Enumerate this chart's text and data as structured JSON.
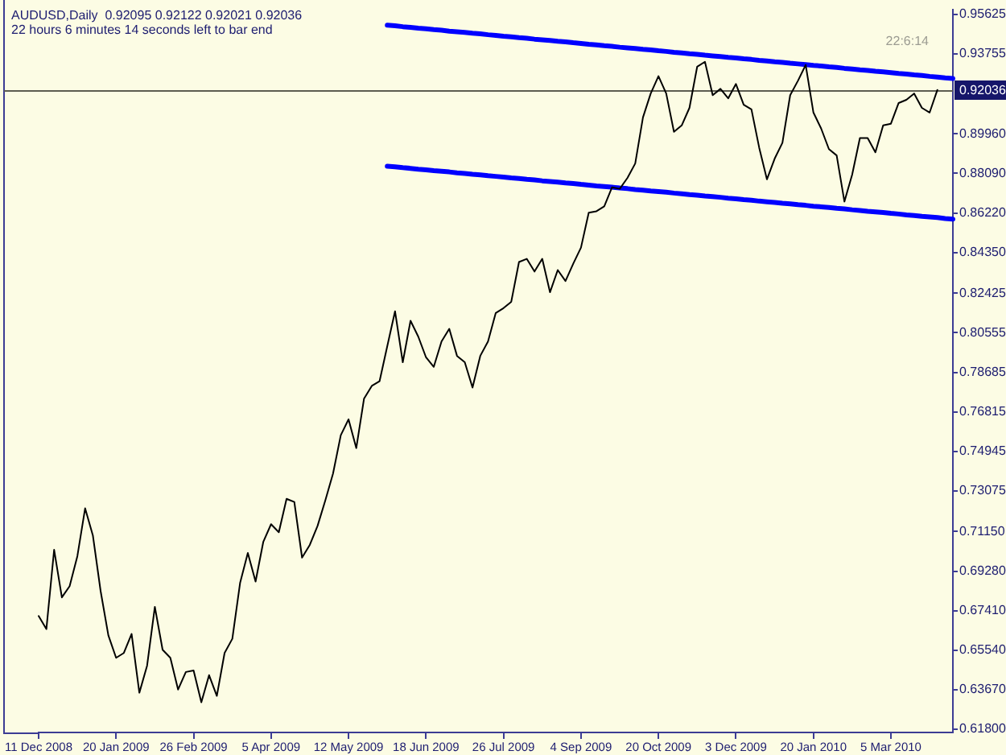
{
  "chart_data": {
    "type": "line",
    "title": "AUDUSD,Daily  0.92095 0.92122 0.92021 0.92036",
    "subtitle": "22 hours 6 minutes 14 seconds left to bar end",
    "annotations": [
      "22:6:14"
    ],
    "categories": [
      "11 Dec 2008",
      null,
      null,
      null,
      null,
      null,
      null,
      null,
      null,
      null,
      "20 Jan 2009",
      null,
      null,
      null,
      null,
      null,
      null,
      null,
      null,
      null,
      "26 Feb 2009",
      null,
      null,
      null,
      null,
      null,
      null,
      null,
      null,
      null,
      "5 Apr 2009",
      null,
      null,
      null,
      null,
      null,
      null,
      null,
      null,
      null,
      "12 May 2009",
      null,
      null,
      null,
      null,
      null,
      null,
      null,
      null,
      null,
      "18 Jun 2009",
      null,
      null,
      null,
      null,
      null,
      null,
      null,
      null,
      null,
      "26 Jul 2009",
      null,
      null,
      null,
      null,
      null,
      null,
      null,
      null,
      null,
      "4 Sep 2009",
      null,
      null,
      null,
      null,
      null,
      null,
      null,
      null,
      null,
      "20 Oct 2009",
      null,
      null,
      null,
      null,
      null,
      null,
      null,
      null,
      null,
      "3 Dec 2009",
      null,
      null,
      null,
      null,
      null,
      null,
      null,
      null,
      null,
      "20 Jan 2010",
      null,
      null,
      null,
      null,
      null,
      null,
      null,
      null,
      null,
      "5 Mar 2010",
      null,
      null,
      null,
      null,
      null,
      null,
      null,
      null
    ],
    "series": [
      {
        "color": "#000000",
        "values": [
          0.6716,
          0.6654,
          0.7029,
          0.6804,
          0.6857,
          0.6999,
          0.7225,
          0.7097,
          0.6834,
          0.6624,
          0.6518,
          0.6541,
          0.6631,
          0.6353,
          0.6481,
          0.6759,
          0.6556,
          0.6518,
          0.6368,
          0.6451,
          0.6458,
          0.6308,
          0.6436,
          0.6338,
          0.6541,
          0.6608,
          0.6872,
          0.7014,
          0.6879,
          0.7067,
          0.715,
          0.7112,
          0.727,
          0.7255,
          0.6992,
          0.7052,
          0.7142,
          0.7262,
          0.739,
          0.7571,
          0.7646,
          0.751,
          0.7744,
          0.7804,
          0.7826,
          0.7992,
          0.8157,
          0.7916,
          0.8112,
          0.8037,
          0.7939,
          0.7894,
          0.8014,
          0.8074,
          0.7946,
          0.7916,
          0.7796,
          0.7946,
          0.8014,
          0.8149,
          0.8172,
          0.8202,
          0.839,
          0.8405,
          0.8345,
          0.8405,
          0.8247,
          0.8352,
          0.83,
          0.8382,
          0.8458,
          0.8623,
          0.863,
          0.8653,
          0.8743,
          0.8736,
          0.8788,
          0.8856,
          0.9074,
          0.9187,
          0.9269,
          0.9187,
          0.9006,
          0.9036,
          0.9119,
          0.9314,
          0.9337,
          0.9179,
          0.9209,
          0.9164,
          0.9232,
          0.9134,
          0.9112,
          0.8931,
          0.8781,
          0.8879,
          0.8954,
          0.9179,
          0.9247,
          0.9322,
          0.9097,
          0.9021,
          0.8924,
          0.8894,
          0.8676,
          0.8803,
          0.8976,
          0.8976,
          0.8909,
          0.9036,
          0.9044,
          0.9142,
          0.9157,
          0.9187,
          0.9119,
          0.9097,
          0.9204,
          null,
          null
        ]
      },
      {
        "color": "#0000ff",
        "values": [
          null,
          null,
          null,
          null,
          null,
          null,
          null,
          null,
          null,
          null,
          null,
          null,
          null,
          null,
          null,
          null,
          null,
          null,
          null,
          null,
          null,
          null,
          null,
          null,
          null,
          null,
          null,
          null,
          null,
          null,
          null,
          null,
          null,
          null,
          null,
          null,
          null,
          null,
          null,
          null,
          null,
          null,
          null,
          null,
          null,
          0.951,
          0.9507,
          0.9503,
          0.95,
          0.9496,
          0.9493,
          0.9489,
          0.9486,
          0.9482,
          0.9479,
          0.9476,
          0.9472,
          0.9469,
          0.9465,
          0.9462,
          0.9458,
          0.9455,
          0.9451,
          0.9448,
          0.9444,
          0.9441,
          0.9438,
          0.9434,
          0.9431,
          0.9427,
          0.9424,
          0.942,
          0.9417,
          0.9413,
          0.941,
          0.9406,
          0.9403,
          0.94,
          0.9396,
          0.9393,
          0.9389,
          0.9386,
          0.9382,
          0.9379,
          0.9375,
          0.9372,
          0.9368,
          0.9365,
          0.9362,
          0.9358,
          0.9355,
          0.9351,
          0.9348,
          0.9344,
          0.9341,
          0.9337,
          0.9334,
          0.933,
          0.9327,
          0.9324,
          0.932,
          0.9317,
          0.9313,
          0.931,
          0.9306,
          0.9303,
          0.9299,
          0.9296,
          0.9292,
          0.9289,
          0.9286,
          0.9282,
          0.9279,
          0.9275,
          0.9272,
          0.9268,
          0.9265,
          0.9261,
          0.9258
        ]
      },
      {
        "color": "#0000ff",
        "values": [
          null,
          null,
          null,
          null,
          null,
          null,
          null,
          null,
          null,
          null,
          null,
          null,
          null,
          null,
          null,
          null,
          null,
          null,
          null,
          null,
          null,
          null,
          null,
          null,
          null,
          null,
          null,
          null,
          null,
          null,
          null,
          null,
          null,
          null,
          null,
          null,
          null,
          null,
          null,
          null,
          null,
          null,
          null,
          null,
          null,
          0.8843,
          0.884,
          0.8836,
          0.8833,
          0.8829,
          0.8826,
          0.8822,
          0.8819,
          0.8816,
          0.8812,
          0.8809,
          0.8805,
          0.8802,
          0.8798,
          0.8795,
          0.8792,
          0.8788,
          0.8785,
          0.8781,
          0.8778,
          0.8774,
          0.8771,
          0.8768,
          0.8764,
          0.8761,
          0.8757,
          0.8754,
          0.875,
          0.8747,
          0.8744,
          0.874,
          0.8737,
          0.8733,
          0.873,
          0.8726,
          0.8723,
          0.872,
          0.8716,
          0.8713,
          0.8709,
          0.8706,
          0.8702,
          0.8699,
          0.8696,
          0.8692,
          0.8689,
          0.8685,
          0.8682,
          0.8678,
          0.8675,
          0.8672,
          0.8668,
          0.8665,
          0.8661,
          0.8658,
          0.8654,
          0.8651,
          0.8648,
          0.8644,
          0.8641,
          0.8637,
          0.8634,
          0.863,
          0.8627,
          0.8624,
          0.862,
          0.8617,
          0.8613,
          0.861,
          0.8606,
          0.8603,
          0.86,
          0.8596,
          0.8593
        ]
      }
    ],
    "ylim": [
      0.6165,
      0.9585
    ],
    "yticks": [
      {
        "value": 0.618,
        "label": "0.61800"
      },
      {
        "value": 0.6367,
        "label": "0.63670"
      },
      {
        "value": 0.6554,
        "label": "0.65540"
      },
      {
        "value": 0.6741,
        "label": "0.67410"
      },
      {
        "value": 0.6928,
        "label": "0.69280"
      },
      {
        "value": 0.7115,
        "label": "0.71150"
      },
      0.73075,
      0.74945,
      0.76815,
      0.78685,
      0.80555,
      0.82425,
      {
        "value": 0.8435,
        "label": "0.84350"
      },
      {
        "value": 0.8622,
        "label": "0.86220"
      },
      {
        "value": 0.8809,
        "label": "0.88090"
      },
      {
        "value": 0.8996,
        "label": "0.89960"
      },
      0.93755,
      0.95625
    ],
    "ref_lines": [
      {
        "axis": "y",
        "value": 0.92036,
        "label": "0.92036",
        "color": "#5c5c50"
      }
    ],
    "marker": "none"
  }
}
